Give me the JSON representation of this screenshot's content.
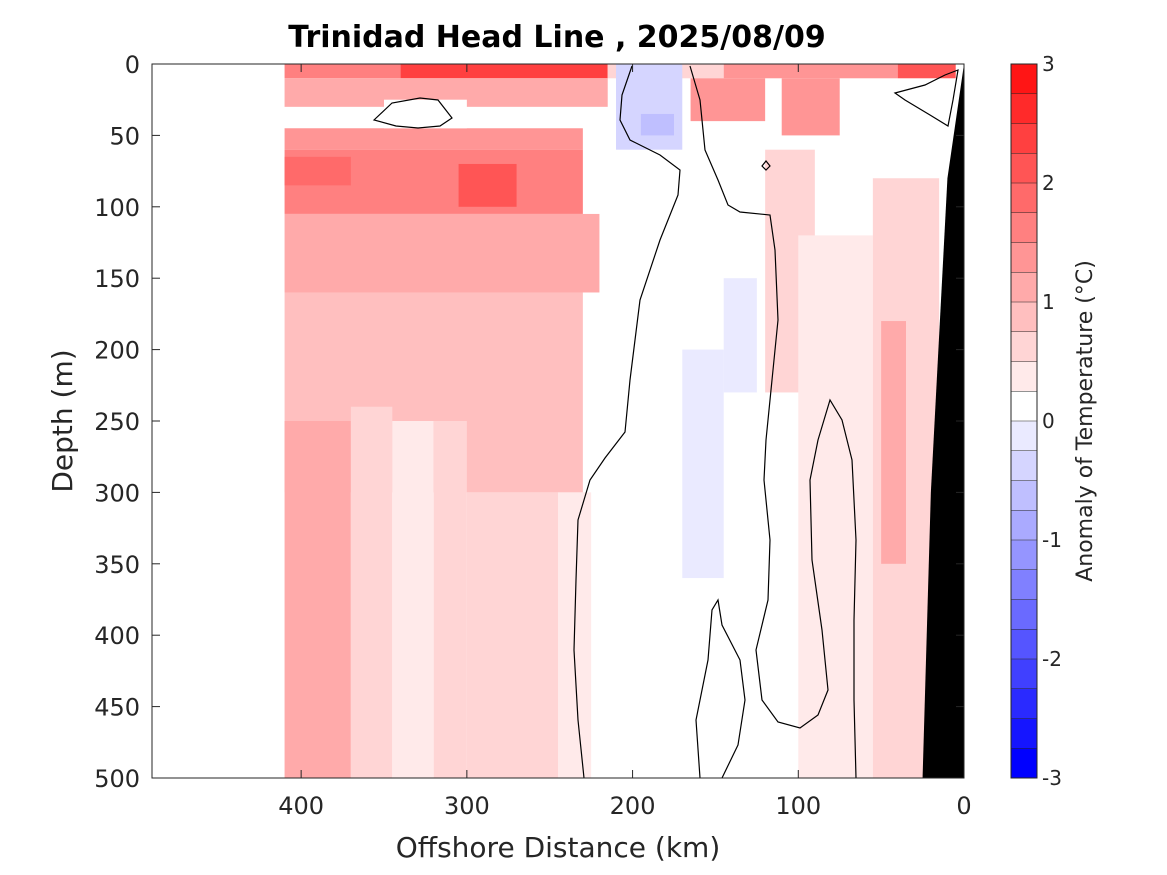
{
  "chart_data": {
    "type": "contour",
    "title": "Trinidad Head Line , 2025/08/09",
    "xlabel": "Offshore Distance (km)",
    "ylabel": "Depth (m)",
    "xlim": [
      490,
      0
    ],
    "ylim": [
      0,
      500
    ],
    "x_reversed": true,
    "y_reversed": true,
    "xticks": [
      400,
      300,
      200,
      100,
      0
    ],
    "yticks": [
      0,
      50,
      100,
      150,
      200,
      250,
      300,
      350,
      400,
      450,
      500
    ],
    "xtick_labels": [
      "400",
      "300",
      "200",
      "100",
      "0"
    ],
    "ytick_labels": [
      "0",
      "50",
      "100",
      "150",
      "200",
      "250",
      "300",
      "350",
      "400",
      "450",
      "500"
    ],
    "colorbar": {
      "label": "Anomaly of Temperature (°C)",
      "limits": [
        -3,
        3
      ],
      "step": 0.25,
      "ticks": [
        3,
        2,
        1,
        0,
        -1,
        -2,
        -3
      ],
      "tick_labels": [
        "3",
        "2",
        "1",
        "0",
        "-1",
        "-2",
        "-3"
      ],
      "colors": [
        "#0000ff",
        "#1515ff",
        "#2a2aff",
        "#4040ff",
        "#5555ff",
        "#6a6aff",
        "#8080ff",
        "#9595ff",
        "#aaaaff",
        "#bfbfff",
        "#d5d5ff",
        "#eaeaff",
        "#ffffff",
        "#ffffff",
        "#ffeaea",
        "#ffd5d5",
        "#ffbfbf",
        "#ffaaaa",
        "#ff9595",
        "#ff8080",
        "#ff6a6a",
        "#ff5555",
        "#ff4040",
        "#ff2a2a",
        "#ff1515",
        "#ff0000"
      ]
    },
    "data_extent_km": [
      410,
      0
    ],
    "bathymetry_color": "#000000",
    "zero_contour_color": "#000000",
    "cells": [
      {
        "x": [
          410,
          340
        ],
        "depth": [
          0,
          10
        ],
        "value": 1.5
      },
      {
        "x": [
          340,
          215
        ],
        "depth": [
          0,
          10
        ],
        "value": 2.3
      },
      {
        "x": [
          215,
          145
        ],
        "depth": [
          0,
          10
        ],
        "value": 0.6
      },
      {
        "x": [
          145,
          40
        ],
        "depth": [
          0,
          10
        ],
        "value": 1.3
      },
      {
        "x": [
          40,
          5
        ],
        "depth": [
          0,
          10
        ],
        "value": 2.2
      },
      {
        "x": [
          410,
          215
        ],
        "depth": [
          10,
          30
        ],
        "value": 1.0
      },
      {
        "x": [
          210,
          170
        ],
        "depth": [
          0,
          60
        ],
        "value": -0.3
      },
      {
        "x": [
          165,
          120
        ],
        "depth": [
          10,
          40
        ],
        "value": 1.4
      },
      {
        "x": [
          110,
          75
        ],
        "depth": [
          10,
          50
        ],
        "value": 1.3
      },
      {
        "x": [
          410,
          230
        ],
        "depth": [
          45,
          60
        ],
        "value": 1.3
      },
      {
        "x": [
          350,
          300
        ],
        "depth": [
          25,
          45
        ],
        "value": 0.1
      },
      {
        "x": [
          195,
          175
        ],
        "depth": [
          35,
          50
        ],
        "value": -0.6
      },
      {
        "x": [
          410,
          230
        ],
        "depth": [
          60,
          105
        ],
        "value": 1.6
      },
      {
        "x": [
          305,
          270
        ],
        "depth": [
          70,
          100
        ],
        "value": 2.0
      },
      {
        "x": [
          410,
          370
        ],
        "depth": [
          65,
          85
        ],
        "value": 1.8
      },
      {
        "x": [
          410,
          220
        ],
        "depth": [
          105,
          160
        ],
        "value": 1.0
      },
      {
        "x": [
          410,
          230
        ],
        "depth": [
          160,
          300
        ],
        "value": 0.8
      },
      {
        "x": [
          410,
          370
        ],
        "depth": [
          250,
          500
        ],
        "value": 1.0
      },
      {
        "x": [
          370,
          345
        ],
        "depth": [
          240,
          500
        ],
        "value": 0.6
      },
      {
        "x": [
          345,
          320
        ],
        "depth": [
          250,
          500
        ],
        "value": 0.3
      },
      {
        "x": [
          320,
          300
        ],
        "depth": [
          250,
          500
        ],
        "value": 0.6
      },
      {
        "x": [
          300,
          245
        ],
        "depth": [
          300,
          500
        ],
        "value": 0.7
      },
      {
        "x": [
          245,
          225
        ],
        "depth": [
          300,
          500
        ],
        "value": 0.4
      },
      {
        "x": [
          170,
          145
        ],
        "depth": [
          200,
          360
        ],
        "value": -0.2
      },
      {
        "x": [
          145,
          125
        ],
        "depth": [
          150,
          230
        ],
        "value": -0.2
      },
      {
        "x": [
          120,
          90
        ],
        "depth": [
          60,
          230
        ],
        "value": 0.5
      },
      {
        "x": [
          100,
          55
        ],
        "depth": [
          120,
          500
        ],
        "value": 0.4
      },
      {
        "x": [
          55,
          15
        ],
        "depth": [
          80,
          500
        ],
        "value": 0.6
      },
      {
        "x": [
          50,
          35
        ],
        "depth": [
          180,
          350
        ],
        "value": 1.0
      }
    ],
    "bathymetry_profile": [
      [
        0,
        0
      ],
      [
        10,
        80
      ],
      [
        20,
        300
      ],
      [
        25,
        500
      ]
    ]
  }
}
